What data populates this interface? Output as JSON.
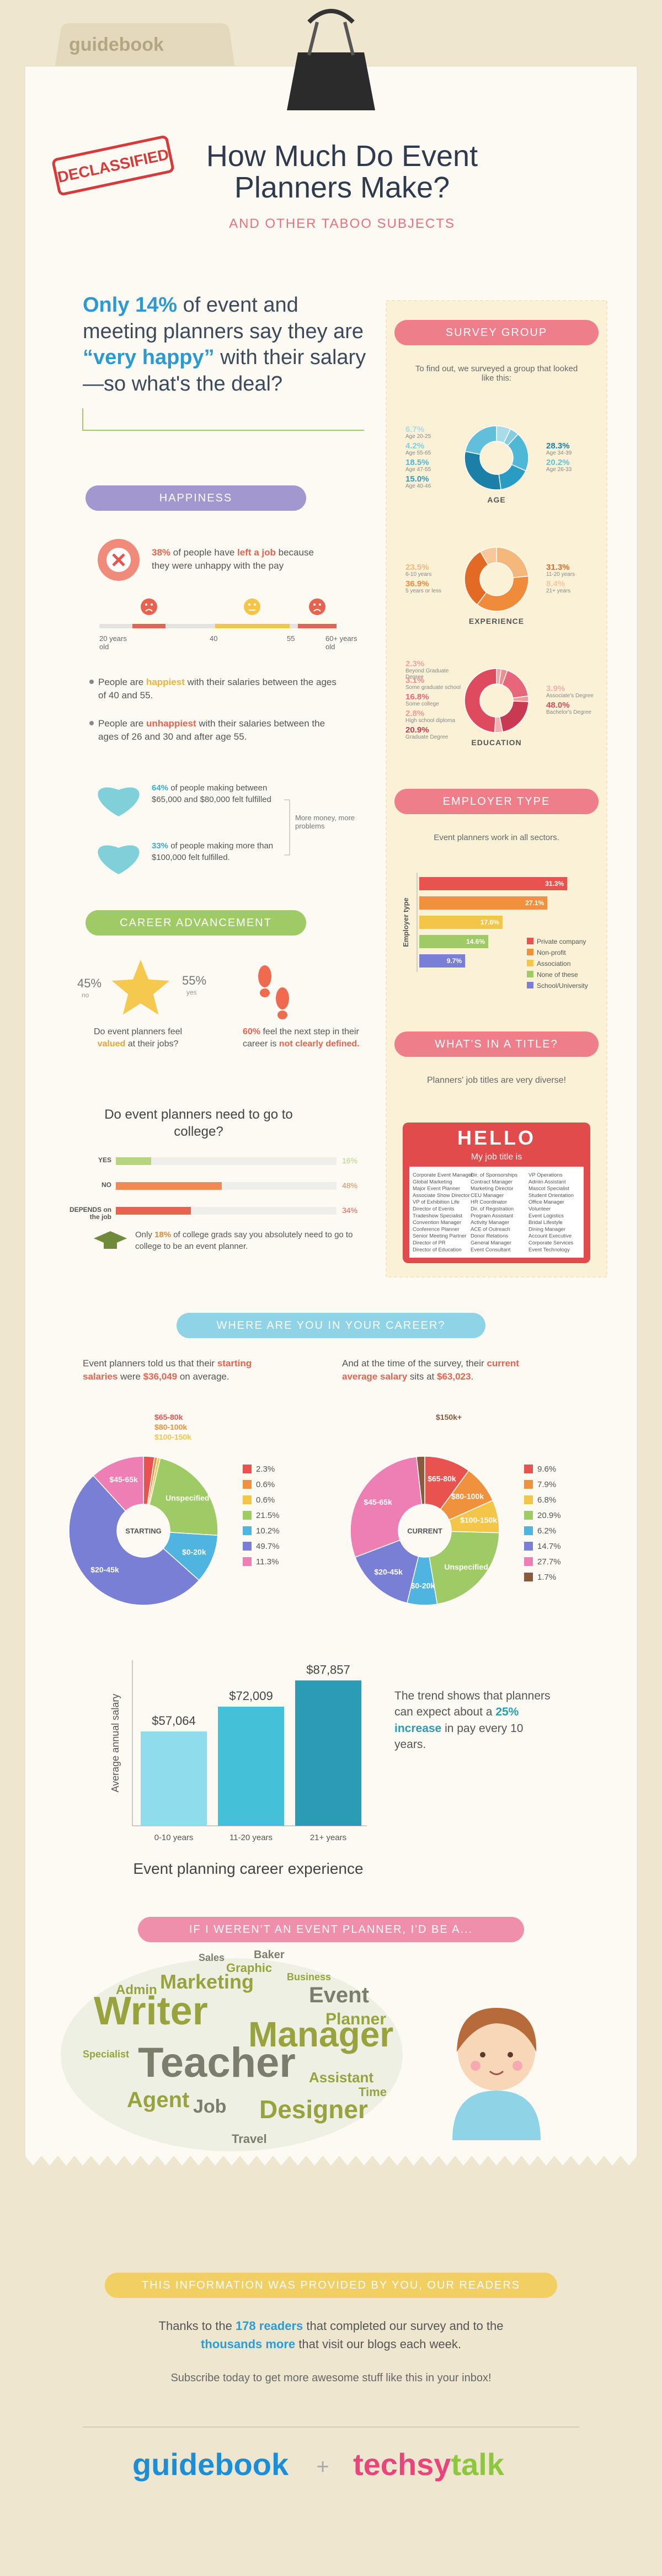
{
  "header": {
    "tab": "guidebook",
    "stamp": "DECLASSIFIED",
    "title": "How Much Do Event Planners Make?",
    "subtitle": "AND OTHER TABOO SUBJECTS"
  },
  "intro": [
    {
      "text": "Only 14%",
      "color": "#2b9ad3"
    },
    " of event and meeting planners say they are ",
    {
      "text": "“very happy”",
      "color": "#2b9ad3"
    },
    " with their salary—so what's the deal?"
  ],
  "survey": {
    "heading": "SURVEY GROUP",
    "text": "To find out, we surveyed a group that looked like this:",
    "charts": [
      {
        "type": "pie",
        "title": "AGE",
        "categories": [
          "Age 20-25",
          "Age 55-65",
          "Age 47-55",
          "Age 40-46",
          "Age 34-39",
          "Age 26-33"
        ],
        "values": [
          6.7,
          4.2,
          18.5,
          15.0,
          28.3,
          20.2
        ],
        "value_labels": [
          "6.7%",
          "4.2%",
          "18.5%",
          "15.0%",
          "28.3%",
          "20.2%"
        ],
        "colors": [
          "#a9dbe9",
          "#86cde2",
          "#4fb8d6",
          "#2a9cc4",
          "#1c7fa8",
          "#62bfdb"
        ]
      },
      {
        "type": "pie",
        "title": "EXPERIENCE",
        "categories": [
          "6-10 years",
          "5 years or less",
          "11-20 years",
          "21+ years"
        ],
        "values": [
          23.5,
          36.9,
          31.3,
          8.4
        ],
        "value_labels": [
          "23.5%",
          "36.9%",
          "31.3%",
          "8.4%"
        ],
        "colors": [
          "#f6b77b",
          "#f08b3c",
          "#e36a24",
          "#f8c79a"
        ]
      },
      {
        "type": "pie",
        "title": "EDUCATION",
        "categories": [
          "Beyond Graduate Degree",
          "Some graduate school",
          "Some college",
          "High school diploma",
          "Graduate Degree",
          "Associate's Degree",
          "Bachelor's Degree"
        ],
        "values": [
          2.3,
          3.1,
          16.8,
          2.8,
          20.9,
          3.9,
          48.0
        ],
        "value_labels": [
          "2.3%",
          "3.1%",
          "16.8%",
          "2.8%",
          "20.9%",
          "3.9%",
          "48.0%"
        ],
        "colors": [
          "#f2a3a3",
          "#ee8f8f",
          "#e8667a",
          "#f09a9a",
          "#c93a52",
          "#f3b0b0",
          "#de4a5e"
        ]
      }
    ]
  },
  "employer": {
    "heading": "EMPLOYER TYPE",
    "text": "Event planners work in all sectors.",
    "chart": {
      "type": "bar",
      "y_label": "Employer type",
      "categories": [
        "Private company",
        "Non-profit",
        "Association",
        "None of these",
        "School/University"
      ],
      "values": [
        31.3,
        27.1,
        17.6,
        14.6,
        9.7
      ],
      "value_labels": [
        "31.3%",
        "27.1%",
        "17.6%",
        "14.6%",
        "9.7%"
      ],
      "colors": [
        "#e8534f",
        "#f0913e",
        "#f3c64a",
        "#9fcb66",
        "#7a7fd6"
      ],
      "xlim": [
        0,
        35
      ]
    }
  },
  "titles": {
    "heading": "WHAT'S IN A TITLE?",
    "text": "Planners' job titles are very diverse!",
    "badge": "HELLO",
    "badge_sub": "My job title is",
    "columns": [
      [
        "Corporate Event Manager",
        "Global Marketing",
        "Major Event Planner",
        "Associate Show Director",
        "VP of Exhibition Life",
        "Director of Events",
        "Tradeshow Specialist",
        "Convention Manager",
        "Conference Planner",
        "Senior Meeting Partner",
        "Director of PR",
        "Director of Education"
      ],
      [
        "Dir. of Sponsorships",
        "Contract Manager",
        "Marketing Director",
        "CEU Manager",
        "HR Coordinator",
        "Dir. of Registration",
        "Program Assistant",
        "Activity Manager",
        "ACE of Outreach",
        "Donor Relations",
        "General Manager",
        "Event Consultant"
      ],
      [
        "VP Operations",
        "Admin Assistant",
        "Mascot Specialist",
        "Student Orientation",
        "Office Manager",
        "Volunteer",
        "Event Logistics",
        "Bridal Lifestyle",
        "Dining Manager",
        "Account Executive",
        "Corporate Services",
        "Event Technology"
      ]
    ]
  },
  "happiness": {
    "heading": "HAPPINESS",
    "left_job": [
      {
        "text": "38%",
        "color": "#e8634f"
      },
      " of people have ",
      {
        "text": "left a job",
        "color": "#e8634f"
      },
      " because they were unhappy with the pay"
    ],
    "scale_labels": [
      "20 years old",
      "40",
      "55",
      "60+ years old"
    ],
    "bullets": [
      [
        "People are ",
        {
          "text": "happiest",
          "color": "#e9b53b"
        },
        " with their salaries between the ages of 40 and 55."
      ],
      [
        "People are ",
        {
          "text": "unhappiest",
          "color": "#e8634f"
        },
        " with their salaries between the ages of 26 and 30 and after age 55."
      ]
    ],
    "fulfilled": [
      [
        {
          "text": "64%",
          "color": "#3aaed0"
        },
        " of people making between $65,000 and $80,000 felt fulfilled"
      ],
      [
        {
          "text": "33%",
          "color": "#3aaed0"
        },
        " of people making more than $100,000 felt fulfilled."
      ]
    ],
    "note": "More money, more problems"
  },
  "career": {
    "heading": "CAREER ADVANCEMENT",
    "valued": {
      "no": "45%",
      "no_label": "no",
      "yes": "55%",
      "yes_label": "yes",
      "text": [
        "Do event planners feel ",
        {
          "text": "valued",
          "color": "#e9a33b"
        },
        " at their jobs?"
      ]
    },
    "next_step": [
      {
        "text": "60%",
        "color": "#e8634f"
      },
      " feel the next step in their career is ",
      {
        "text": "not clearly defined.",
        "color": "#e8634f"
      }
    ],
    "college": {
      "question": "Do event planners need to go to college?",
      "chart": {
        "type": "bar",
        "categories": [
          "YES",
          "NO",
          "DEPENDS on the job"
        ],
        "values": [
          16,
          48,
          34
        ],
        "value_labels": [
          "16%",
          "48%",
          "34%"
        ],
        "colors": [
          "#b5d67a",
          "#ef8a55",
          "#e8634f"
        ],
        "xlim": [
          0,
          100
        ]
      },
      "note": [
        "Only ",
        {
          "text": "18%",
          "color": "#e8863b"
        },
        " of college grads say you absolutely need to go to college to be an event planner."
      ]
    }
  },
  "where": {
    "heading": "WHERE ARE YOU IN YOUR CAREER?",
    "starting_text": [
      "Event planners told us that their ",
      {
        "text": "starting salaries",
        "color": "#e8634f"
      },
      " were ",
      {
        "text": "$36,049",
        "color": "#e8634f"
      },
      " on average."
    ],
    "current_text": [
      "And at the time of the survey, their ",
      {
        "text": "current average salary",
        "color": "#e8634f"
      },
      " sits at ",
      {
        "text": "$63,023",
        "color": "#e8634f"
      },
      "."
    ],
    "charts": [
      {
        "type": "pie",
        "center_label": "STARTING",
        "categories": [
          "$65-80k",
          "$80-100k",
          "$100-150k",
          "Unspecified",
          "$0-20k",
          "$20-45k",
          "$45-65k"
        ],
        "values": [
          2.3,
          0.6,
          0.6,
          21.5,
          10.2,
          49.7,
          11.3
        ],
        "value_labels": [
          "2.3%",
          "0.6%",
          "0.6%",
          "21.5%",
          "10.2%",
          "49.7%",
          "11.3%"
        ],
        "colors": [
          "#e8534f",
          "#f0913e",
          "#f3c64a",
          "#9fcb66",
          "#4fb4e0",
          "#7a7fd6",
          "#ee7fb4"
        ]
      },
      {
        "type": "pie",
        "center_label": "CURRENT",
        "categories": [
          "$65-80k",
          "$80-100k",
          "$100-150k",
          "Unspecified",
          "$0-20k",
          "$20-45k",
          "$45-65k",
          "$150k+"
        ],
        "values": [
          9.6,
          7.9,
          6.8,
          20.9,
          6.2,
          14.7,
          27.7,
          1.7
        ],
        "value_labels": [
          "9.6%",
          "7.9%",
          "6.8%",
          "20.9%",
          "6.2%",
          "14.7%",
          "27.7%",
          "1.7%"
        ],
        "colors": [
          "#e8534f",
          "#f0913e",
          "#f3c64a",
          "#9fcb66",
          "#4fb4e0",
          "#7a7fd6",
          "#ee7fb4",
          "#8a5a3c"
        ]
      }
    ],
    "trend": {
      "type": "bar",
      "y_label": "Average annual salary",
      "x_label": "Event planning career experience",
      "categories": [
        "0-10 years",
        "11-20 years",
        "21+ years"
      ],
      "values": [
        57064,
        72009,
        87857
      ],
      "value_labels": [
        "$57,064",
        "$72,009",
        "$87,857"
      ],
      "colors": [
        "#8fdcec",
        "#44c0d8",
        "#2a9cb4"
      ],
      "ylim": [
        0,
        100000
      ]
    },
    "trend_text": [
      "The trend shows that planners can expect about a ",
      {
        "text": "25% increase",
        "color": "#2a9cb4"
      },
      " in pay every 10 years."
    ]
  },
  "alternate": {
    "heading": "IF I WEREN'T AN EVENT PLANNER, I'D BE A...",
    "words": [
      "Writer",
      "Teacher",
      "Manager",
      "Agent",
      "Job",
      "Designer",
      "Marketing",
      "Event",
      "Planner",
      "Graphic",
      "Baker",
      "Assistant",
      "Admin",
      "Travel",
      "Business",
      "Time",
      "Sales",
      "Specialist"
    ]
  },
  "footer": {
    "heading": "THIS INFORMATION WAS PROVIDED BY YOU, OUR READERS",
    "thanks": [
      "Thanks to the ",
      {
        "text": "178 readers",
        "color": "#2a9cd6"
      },
      " that completed our survey and to the ",
      {
        "text": "thousands more",
        "color": "#2a9cd6"
      },
      " that visit our blogs each week."
    ],
    "subscribe": "Subscribe today to get more awesome stuff like this in your inbox!",
    "logos": {
      "left": "guidebook",
      "plus": "+",
      "right": [
        {
          "text": "techsy",
          "color": "#e8457c"
        },
        {
          "text": "talk",
          "color": "#8dc63f"
        }
      ]
    }
  }
}
